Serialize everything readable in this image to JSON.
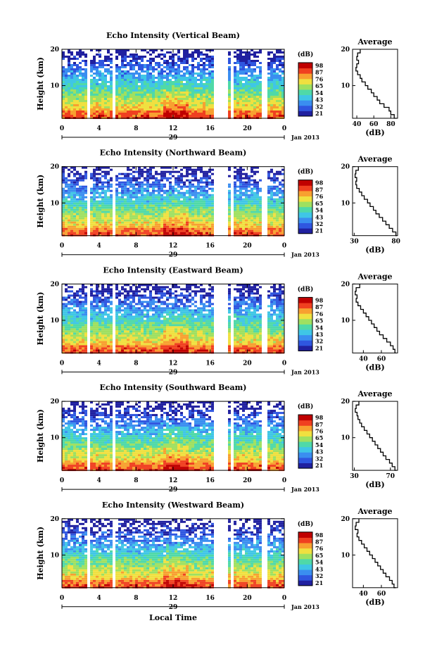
{
  "chart_data": [
    {
      "type": "heatmap",
      "title": "Echo Intensity (Vertical Beam)",
      "ylabel": "Height (km)",
      "y_ticks": [
        "20",
        "10"
      ],
      "ylim": [
        1,
        20
      ],
      "x_ticks": [
        "0",
        "4",
        "8",
        "12",
        "16",
        "20",
        "0"
      ],
      "xlim": [
        0,
        24
      ],
      "day_label": "29",
      "month_label": "Jan 2013",
      "colorbar": {
        "unit": "(dB)",
        "ticks": [
          "98",
          "87",
          "76",
          "65",
          "54",
          "43",
          "32",
          "21"
        ]
      },
      "data_gaps_hours": [
        [
          2.5,
          2.8
        ],
        [
          5.2,
          5.5
        ],
        [
          7.9,
          8.2
        ],
        [
          16.3,
          17.9
        ],
        [
          18.0,
          18.3
        ],
        [
          21.4,
          22.0
        ]
      ],
      "average_profile": {
        "title": "Average",
        "xlabel": "(dB)",
        "x_ticks": [
          "40",
          "60",
          "80"
        ],
        "xlim": [
          35,
          88
        ],
        "y_ticks": [
          "20",
          "10"
        ],
        "height_km": [
          20,
          19,
          18,
          17,
          16,
          15,
          14,
          13,
          12,
          11,
          10,
          9,
          8,
          7,
          6,
          5,
          4,
          3,
          2,
          1
        ],
        "db": [
          44,
          41,
          40,
          42,
          40,
          39,
          41,
          44,
          46,
          50,
          53,
          57,
          60,
          64,
          67,
          72,
          78,
          80,
          84,
          87
        ]
      }
    },
    {
      "type": "heatmap",
      "title": "Echo Intensity (Northward Beam)",
      "ylabel": "Height (km)",
      "y_ticks": [
        "20",
        "10"
      ],
      "ylim": [
        1,
        20
      ],
      "x_ticks": [
        "0",
        "4",
        "8",
        "12",
        "16",
        "20",
        "0"
      ],
      "xlim": [
        0,
        24
      ],
      "day_label": "29",
      "month_label": "Jan 2013",
      "colorbar": {
        "unit": "(dB)",
        "ticks": [
          "98",
          "87",
          "76",
          "65",
          "54",
          "43",
          "32",
          "21"
        ]
      },
      "data_gaps_hours": [
        [
          2.5,
          2.8
        ],
        [
          5.2,
          5.5
        ],
        [
          7.9,
          8.2
        ],
        [
          16.3,
          17.9
        ],
        [
          18.0,
          18.3
        ],
        [
          21.4,
          22.0
        ]
      ],
      "average_profile": {
        "title": "Average",
        "xlabel": "(dB)",
        "x_ticks": [
          "30",
          "80"
        ],
        "xlim": [
          28,
          82
        ],
        "y_ticks": [
          "20",
          "10"
        ],
        "height_km": [
          20,
          19,
          18,
          17,
          16,
          15,
          14,
          13,
          12,
          11,
          10,
          9,
          8,
          7,
          6,
          5,
          4,
          3,
          2,
          1
        ],
        "db": [
          35,
          32,
          31,
          33,
          32,
          33,
          36,
          39,
          42,
          46,
          49,
          53,
          56,
          60,
          64,
          68,
          72,
          76,
          80,
          81
        ]
      }
    },
    {
      "type": "heatmap",
      "title": "Echo Intensity (Eastward Beam)",
      "ylabel": "Height (km)",
      "y_ticks": [
        "20",
        "10"
      ],
      "ylim": [
        1,
        20
      ],
      "x_ticks": [
        "0",
        "4",
        "8",
        "12",
        "16",
        "20",
        "0"
      ],
      "xlim": [
        0,
        24
      ],
      "day_label": "29",
      "month_label": "Jan 2013",
      "colorbar": {
        "unit": "(dB)",
        "ticks": [
          "98",
          "87",
          "76",
          "65",
          "54",
          "43",
          "32",
          "21"
        ]
      },
      "data_gaps_hours": [
        [
          2.5,
          2.8
        ],
        [
          5.2,
          5.5
        ],
        [
          7.9,
          8.2
        ],
        [
          16.3,
          17.9
        ],
        [
          18.0,
          18.3
        ],
        [
          21.4,
          22.0
        ]
      ],
      "average_profile": {
        "title": "Average",
        "xlabel": "(dB)",
        "x_ticks": [
          "40",
          "60"
        ],
        "xlim": [
          28,
          78
        ],
        "y_ticks": [
          "20",
          "10"
        ],
        "height_km": [
          20,
          19,
          18,
          17,
          16,
          15,
          14,
          13,
          12,
          11,
          10,
          9,
          8,
          7,
          6,
          5,
          4,
          3,
          2,
          1
        ],
        "db": [
          36,
          32,
          31,
          33,
          32,
          34,
          37,
          40,
          43,
          46,
          49,
          52,
          55,
          58,
          62,
          66,
          70,
          73,
          75,
          76
        ]
      }
    },
    {
      "type": "heatmap",
      "title": "Echo Intensity (Southward Beam)",
      "ylabel": "Height (km)",
      "y_ticks": [
        "20",
        "10"
      ],
      "ylim": [
        1,
        20
      ],
      "x_ticks": [
        "0",
        "4",
        "8",
        "12",
        "16",
        "20",
        "0"
      ],
      "xlim": [
        0,
        24
      ],
      "day_label": "29",
      "month_label": "Jan 2013",
      "colorbar": {
        "unit": "(dB)",
        "ticks": [
          "98",
          "87",
          "76",
          "65",
          "54",
          "43",
          "32",
          "21"
        ]
      },
      "data_gaps_hours": [
        [
          2.5,
          2.8
        ],
        [
          5.2,
          5.5
        ],
        [
          7.9,
          8.2
        ],
        [
          16.3,
          17.9
        ],
        [
          18.0,
          18.3
        ],
        [
          21.4,
          22.0
        ]
      ],
      "average_profile": {
        "title": "Average",
        "xlabel": "(dB)",
        "x_ticks": [
          "30",
          "70"
        ],
        "xlim": [
          28,
          78
        ],
        "y_ticks": [
          "20",
          "10"
        ],
        "height_km": [
          20,
          19,
          18,
          17,
          16,
          15,
          14,
          13,
          12,
          11,
          10,
          9,
          8,
          7,
          6,
          5,
          4,
          3,
          2,
          1
        ],
        "db": [
          35,
          32,
          31,
          33,
          34,
          36,
          38,
          41,
          44,
          47,
          50,
          53,
          56,
          59,
          62,
          65,
          69,
          72,
          75,
          77
        ]
      }
    },
    {
      "type": "heatmap",
      "title": "Echo Intensity (Westward Beam)",
      "ylabel": "Height (km)",
      "y_ticks": [
        "20",
        "10"
      ],
      "ylim": [
        1,
        20
      ],
      "x_ticks": [
        "0",
        "4",
        "8",
        "12",
        "16",
        "20",
        "0"
      ],
      "xlim": [
        0,
        24
      ],
      "day_label": "29",
      "month_label": "Jan 2013",
      "xlabel": "Local Time",
      "colorbar": {
        "unit": "(dB)",
        "ticks": [
          "98",
          "87",
          "76",
          "65",
          "54",
          "43",
          "32",
          "21"
        ]
      },
      "data_gaps_hours": [
        [
          2.5,
          2.8
        ],
        [
          5.2,
          5.5
        ],
        [
          7.9,
          8.2
        ],
        [
          16.3,
          17.9
        ],
        [
          18.0,
          18.3
        ],
        [
          21.4,
          22.0
        ]
      ],
      "average_profile": {
        "title": "Average",
        "xlabel": "(dB)",
        "x_ticks": [
          "40",
          "60"
        ],
        "xlim": [
          28,
          78
        ],
        "y_ticks": [
          "20",
          "10"
        ],
        "height_km": [
          20,
          19,
          18,
          17,
          16,
          15,
          14,
          13,
          12,
          11,
          10,
          9,
          8,
          7,
          6,
          5,
          4,
          3,
          2,
          1
        ],
        "db": [
          35,
          32,
          31,
          34,
          33,
          35,
          38,
          41,
          44,
          47,
          50,
          53,
          56,
          59,
          62,
          65,
          69,
          72,
          74,
          76
        ]
      }
    }
  ],
  "colors": {
    "scale": [
      "#2020a0",
      "#2f56e0",
      "#3a8ef0",
      "#3fc6e6",
      "#4fd9a8",
      "#9fe060",
      "#f0e040",
      "#f8a030",
      "#f04020",
      "#c00000"
    ]
  }
}
